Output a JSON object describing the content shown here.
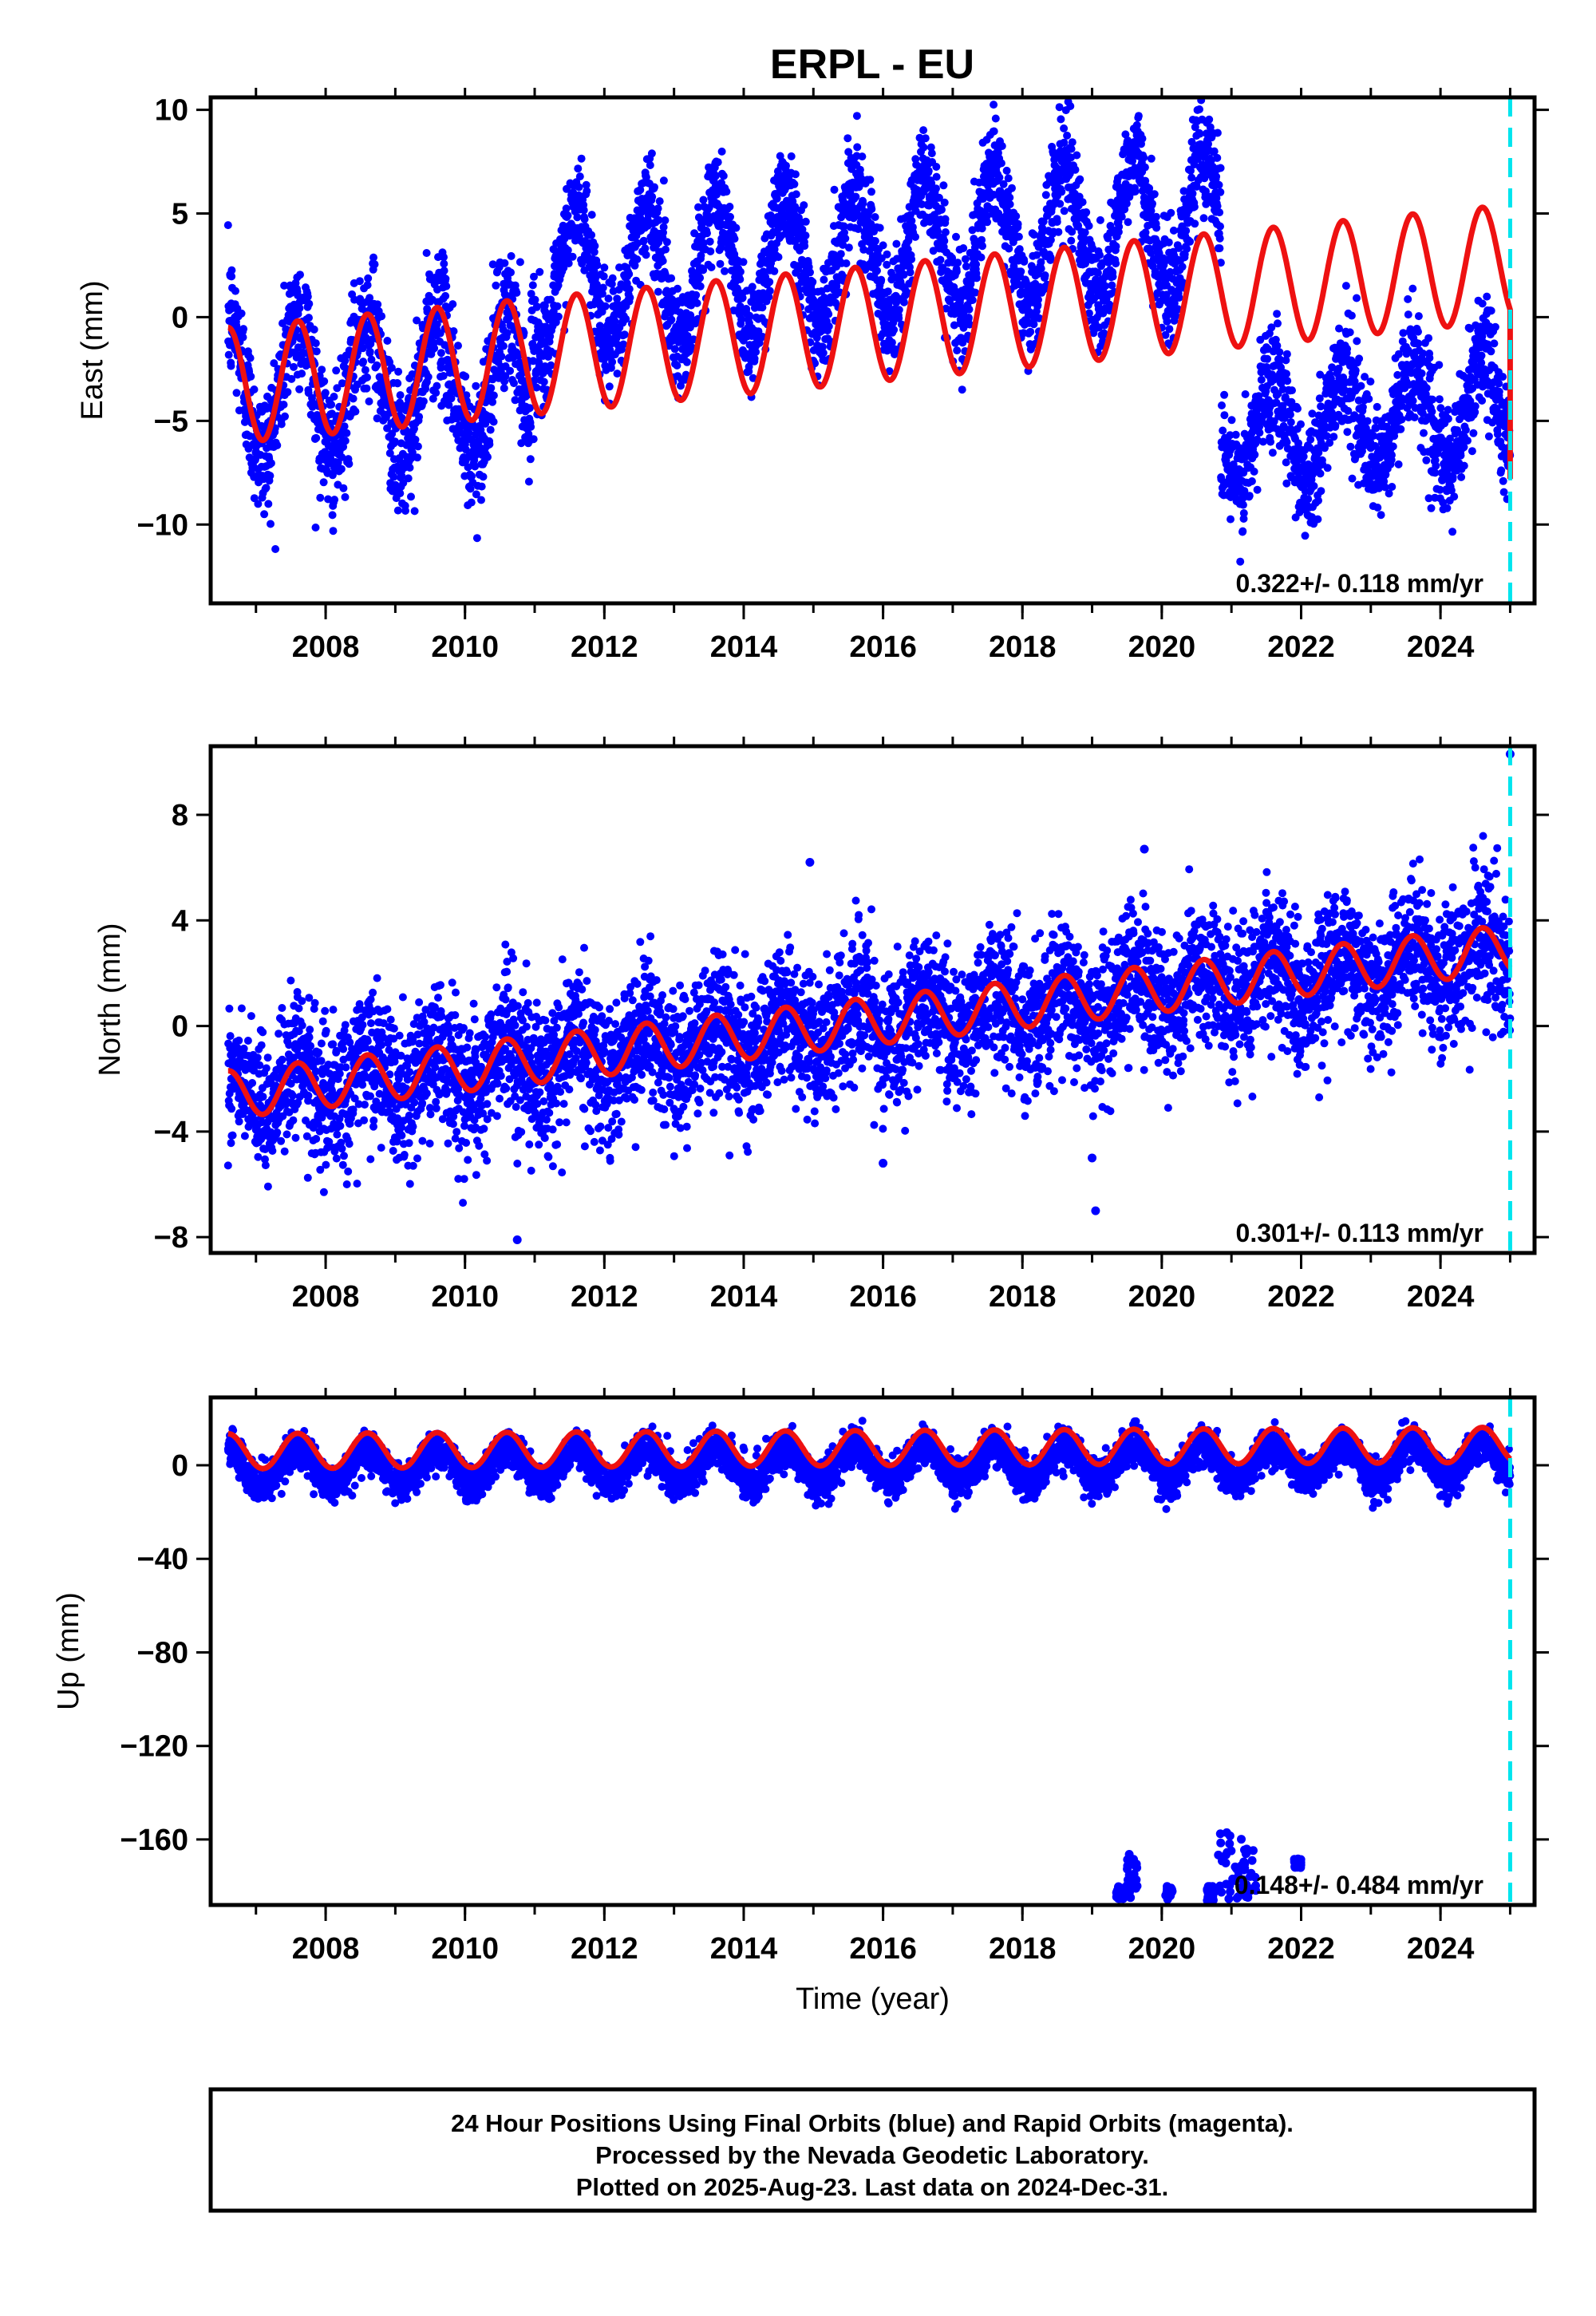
{
  "title": "ERPL - EU",
  "colors": {
    "observations": "#0000ff",
    "model": "#ee1111",
    "last_data_line": "#00e5ee",
    "frame": "#000000"
  },
  "chart_data": [
    {
      "type": "scatter",
      "ylabel": "East (mm)",
      "xlim": [
        2006.35,
        2025.35
      ],
      "ylim": [
        -13.8,
        10.6
      ],
      "x_ticks": [
        2008,
        2010,
        2012,
        2014,
        2016,
        2018,
        2020,
        2022,
        2024
      ],
      "y_ticks": [
        -10,
        -5,
        0,
        5,
        10
      ],
      "rate_label": "0.322+/- 0.118 mm/yr",
      "last_data": 2025.0,
      "grid": false,
      "series": [
        {
          "role": "observations",
          "color": "#0000ff",
          "segments": [
            {
              "x": [
                2006.6,
                2010.95
              ],
              "baseline": -3.3,
              "trend": 0.0,
              "amplitude": 3.3,
              "noise": 1.6
            },
            {
              "x": [
                2010.95,
                2020.85
              ],
              "baseline": 1.6,
              "trend": 0.32,
              "amplitude": 3.3,
              "noise": 1.3
            },
            {
              "x": [
                2020.85,
                2025.0
              ],
              "baseline": -5.6,
              "trend": 0.3,
              "amplitude": 2.6,
              "noise": 1.4
            }
          ]
        },
        {
          "role": "model",
          "color": "#ee1111",
          "x": [
            2006.6,
            2025.0
          ],
          "start_value": -3.3,
          "trend": 0.322,
          "amplitude": 2.8,
          "end_value": -7.8
        }
      ]
    },
    {
      "type": "scatter",
      "ylabel": "North (mm)",
      "xlim": [
        2006.35,
        2025.35
      ],
      "ylim": [
        -8.6,
        10.6
      ],
      "x_ticks": [
        2008,
        2010,
        2012,
        2014,
        2016,
        2018,
        2020,
        2022,
        2024
      ],
      "y_ticks": [
        -8,
        -4,
        0,
        4,
        8
      ],
      "rate_label": "0.301+/- 0.113 mm/yr",
      "last_data": 2025.0,
      "grid": false,
      "series": [
        {
          "role": "observations",
          "color": "#0000ff",
          "segments": [
            {
              "x": [
                2006.6,
                2025.0
              ],
              "baseline": -2.6,
              "trend": 0.29,
              "amplitude": 0.9,
              "noise": 1.3
            }
          ],
          "outliers": [
            {
              "x": 2010.75,
              "y": -8.1
            },
            {
              "x": 2014.95,
              "y": 6.2
            },
            {
              "x": 2019.05,
              "y": -7.0
            },
            {
              "x": 2019.0,
              "y": -5.0
            },
            {
              "x": 2016.0,
              "y": -5.2
            },
            {
              "x": 2025.0,
              "y": 10.3
            },
            {
              "x": 2019.75,
              "y": 6.7
            }
          ]
        },
        {
          "role": "model",
          "color": "#ee1111",
          "x": [
            2006.6,
            2025.0
          ],
          "start_value": -2.6,
          "trend": 0.301,
          "amplitude": 0.9
        }
      ]
    },
    {
      "type": "scatter",
      "ylabel": "Up (mm)",
      "xlabel": "Time (year)",
      "xlim": [
        2006.35,
        2025.35
      ],
      "ylim": [
        -188,
        29
      ],
      "x_ticks": [
        2008,
        2010,
        2012,
        2014,
        2016,
        2018,
        2020,
        2022,
        2024
      ],
      "y_ticks": [
        -160,
        -120,
        -80,
        -40,
        0
      ],
      "rate_label": "0.148+/- 0.484 mm/yr",
      "last_data": 2025.0,
      "grid": false,
      "series": [
        {
          "role": "observations",
          "color": "#0000ff",
          "segments": [
            {
              "x": [
                2006.6,
                2025.0
              ],
              "baseline": -1.0,
              "trend": 0.15,
              "amplitude": 7.5,
              "noise": 4.0
            }
          ],
          "outlier_clusters": [
            {
              "x": [
                2019.35,
                2019.45
              ],
              "y": [
                -186,
                -180
              ]
            },
            {
              "x": [
                2019.5,
                2019.65
              ],
              "y": [
                -185,
                -166
              ]
            },
            {
              "x": [
                2020.05,
                2020.15
              ],
              "y": [
                -186,
                -180
              ]
            },
            {
              "x": [
                2020.65,
                2020.75
              ],
              "y": [
                -187,
                -180
              ]
            },
            {
              "x": [
                2020.8,
                2021.15
              ],
              "y": [
                -186,
                -157
              ]
            },
            {
              "x": [
                2021.15,
                2021.35
              ],
              "y": [
                -186,
                -163
              ]
            },
            {
              "x": [
                2021.9,
                2022.0
              ],
              "y": [
                -172,
                -168
              ]
            }
          ]
        },
        {
          "role": "model",
          "color": "#ee1111",
          "x": [
            2006.6,
            2025.0
          ],
          "start_value": 6.0,
          "trend": 0.148,
          "amplitude": 7.5
        }
      ]
    }
  ],
  "footer": {
    "line1": "24 Hour Positions Using Final Orbits (blue) and Rapid Orbits (magenta).",
    "line2": "Processed by the Nevada Geodetic Laboratory.",
    "line3": "Plotted on 2025-Aug-23. Last data on 2024-Dec-31."
  }
}
